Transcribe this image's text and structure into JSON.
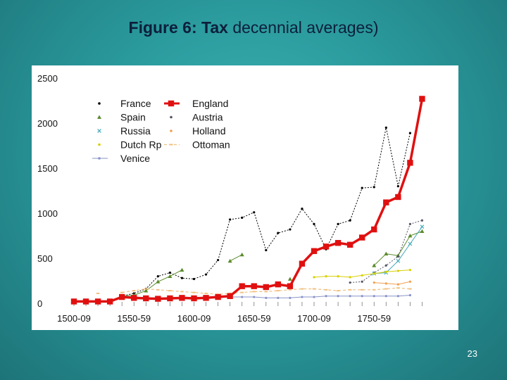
{
  "slide": {
    "title_bold": "Figure 6: Tax",
    "title_rest": "decennial averages)",
    "page_number": "23"
  },
  "chart_data": {
    "type": "line",
    "title": "Figure 6: Tax decennial averages)",
    "xlabel": "",
    "ylabel": "",
    "ylim": [
      0,
      2500
    ],
    "yticks": [
      "0",
      "500",
      "1000",
      "1500",
      "2000",
      "2500"
    ],
    "xticks": [
      "1500-09",
      "1550-59",
      "1600-09",
      "1650-59",
      "1700-09",
      "1750-59"
    ],
    "x": [
      1500,
      1510,
      1520,
      1530,
      1540,
      1550,
      1560,
      1570,
      1580,
      1590,
      1600,
      1610,
      1620,
      1630,
      1640,
      1650,
      1660,
      1670,
      1680,
      1690,
      1700,
      1710,
      1720,
      1730,
      1740,
      1750,
      1760,
      1770,
      1780,
      1790
    ],
    "grid": false,
    "legend_position": "top-left",
    "series": [
      {
        "name": "France",
        "color": "#000000",
        "marker": "dot",
        "dash": "2,2",
        "width": 1,
        "values": [
          20,
          18,
          20,
          25,
          80,
          110,
          160,
          300,
          340,
          280,
          270,
          320,
          480,
          930,
          950,
          1010,
          590,
          780,
          820,
          1050,
          880,
          600,
          880,
          920,
          1280,
          1290,
          1950,
          1300,
          1890,
          null
        ]
      },
      {
        "name": "England",
        "color": "#e01010",
        "marker": "square",
        "dash": "",
        "width": 3.5,
        "values": [
          20,
          20,
          20,
          20,
          70,
          60,
          55,
          50,
          55,
          60,
          55,
          60,
          70,
          80,
          190,
          190,
          180,
          210,
          190,
          440,
          580,
          630,
          670,
          650,
          730,
          820,
          1120,
          1180,
          1560,
          2270
        ]
      },
      {
        "name": "Spain",
        "color": "#5a8a2a",
        "marker": "triangle",
        "dash": "",
        "width": 1,
        "values": [
          null,
          null,
          null,
          null,
          80,
          90,
          140,
          240,
          300,
          370,
          null,
          null,
          null,
          470,
          540,
          null,
          null,
          null,
          270,
          null,
          null,
          null,
          null,
          null,
          null,
          420,
          550,
          530,
          750,
          800
        ]
      },
      {
        "name": "Austria",
        "color": "#555566",
        "marker": "dot",
        "dash": "2,2",
        "width": 1,
        "values": [
          null,
          null,
          null,
          null,
          null,
          null,
          null,
          null,
          null,
          null,
          null,
          null,
          null,
          null,
          null,
          null,
          null,
          null,
          null,
          null,
          null,
          null,
          null,
          230,
          240,
          340,
          420,
          520,
          880,
          920
        ]
      },
      {
        "name": "Russia",
        "color": "#40a8b8",
        "marker": "cross",
        "dash": "",
        "width": 1,
        "values": [
          null,
          null,
          null,
          null,
          null,
          null,
          null,
          null,
          null,
          null,
          null,
          null,
          null,
          null,
          null,
          null,
          null,
          null,
          null,
          null,
          null,
          null,
          null,
          null,
          null,
          330,
          340,
          470,
          660,
          850
        ]
      },
      {
        "name": "Holland",
        "color": "#f0a050",
        "marker": "dot",
        "dash": "",
        "width": 1,
        "values": [
          null,
          null,
          null,
          null,
          null,
          null,
          null,
          null,
          null,
          null,
          null,
          null,
          null,
          null,
          null,
          null,
          null,
          null,
          null,
          null,
          null,
          null,
          null,
          null,
          null,
          230,
          220,
          210,
          240,
          null
        ]
      },
      {
        "name": "Dutch Rp",
        "color": "#d8d000",
        "marker": "dot",
        "dash": "",
        "width": 1,
        "values": [
          null,
          null,
          null,
          null,
          null,
          null,
          null,
          null,
          null,
          null,
          null,
          null,
          null,
          null,
          null,
          null,
          null,
          null,
          null,
          null,
          290,
          300,
          300,
          290,
          310,
          330,
          350,
          360,
          370,
          null
        ]
      },
      {
        "name": "Ottoman",
        "color": "#f0c080",
        "marker": "dash",
        "dash": "4,3",
        "width": 1.2,
        "values": [
          null,
          null,
          110,
          null,
          120,
          140,
          160,
          150,
          140,
          130,
          120,
          110,
          100,
          110,
          120,
          130,
          130,
          140,
          150,
          160,
          160,
          150,
          140,
          150,
          150,
          150,
          160,
          170,
          160,
          null
        ]
      },
      {
        "name": "Venice",
        "color": "#8a93c8",
        "marker": "dot",
        "dash": "",
        "width": 1,
        "values": [
          null,
          null,
          null,
          null,
          80,
          70,
          60,
          60,
          60,
          60,
          60,
          70,
          70,
          70,
          70,
          70,
          60,
          60,
          60,
          70,
          70,
          80,
          80,
          80,
          80,
          80,
          80,
          80,
          90,
          null
        ]
      }
    ]
  }
}
